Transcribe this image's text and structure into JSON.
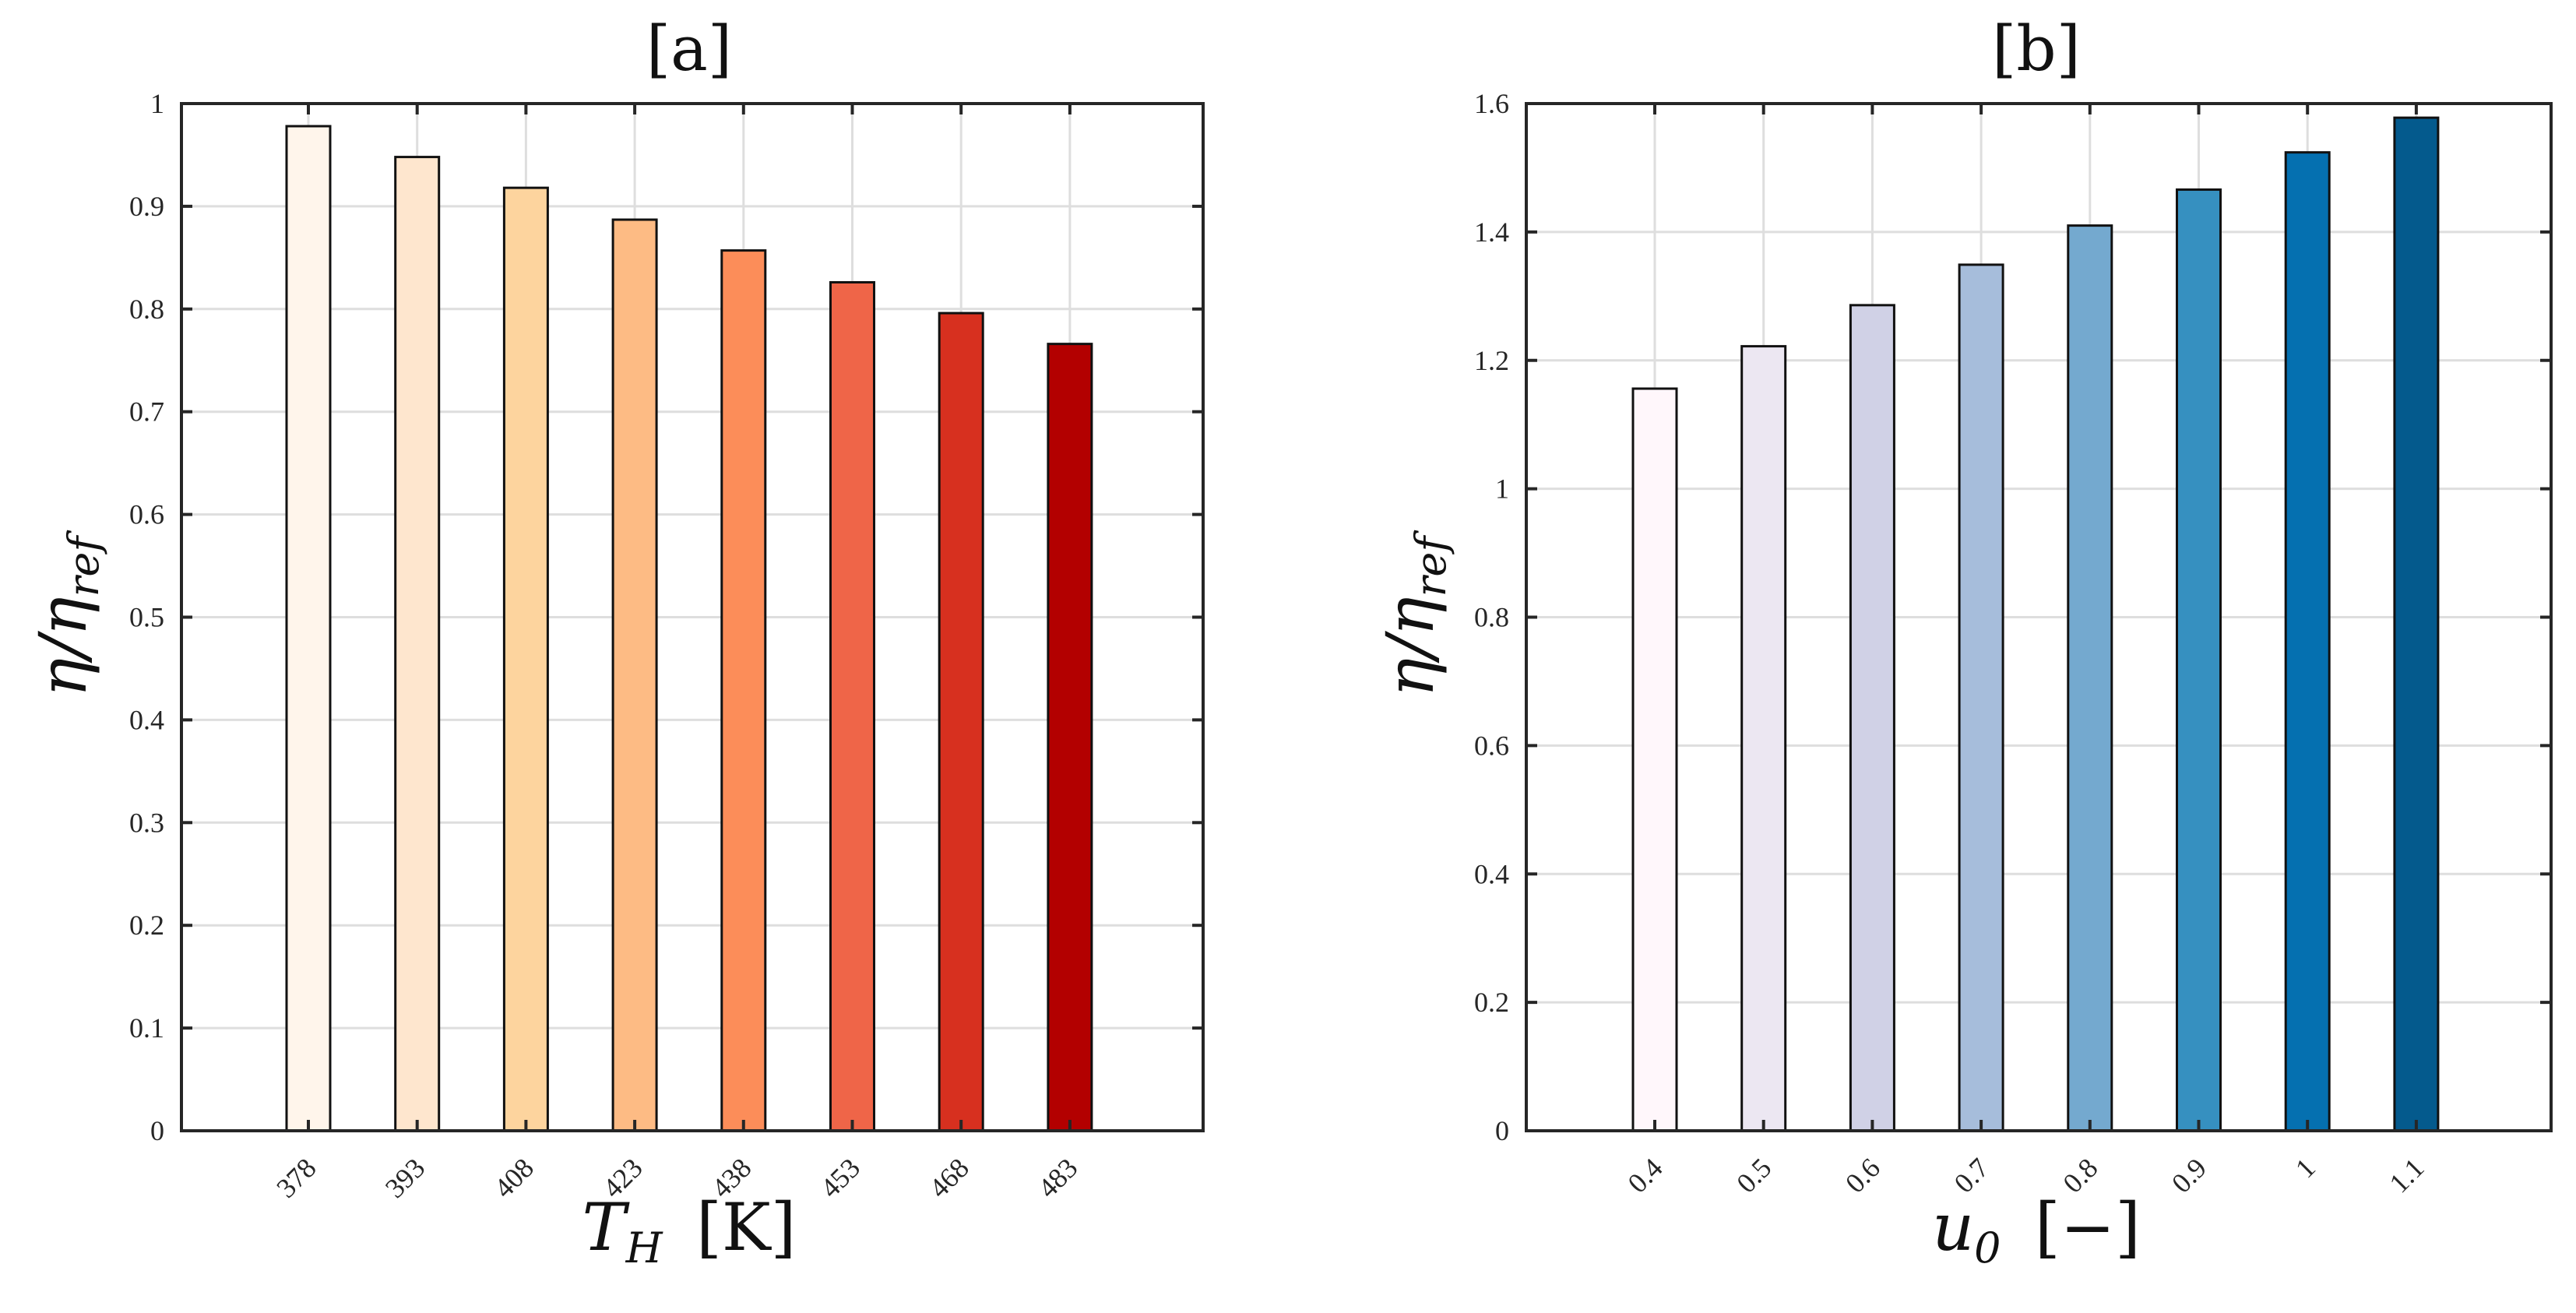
{
  "chart_data": [
    {
      "type": "bar",
      "title": "[a]",
      "xlabel": "T_H [K]",
      "ylabel": "η/η_ref",
      "categories": [
        "378",
        "393",
        "408",
        "423",
        "438",
        "453",
        "468",
        "483"
      ],
      "values": [
        0.978,
        0.948,
        0.918,
        0.887,
        0.857,
        0.826,
        0.796,
        0.766
      ],
      "ylim": [
        0,
        1
      ],
      "yticks": [
        "0",
        "0.1",
        "0.2",
        "0.3",
        "0.4",
        "0.5",
        "0.6",
        "0.7",
        "0.8",
        "0.9",
        "1"
      ],
      "ytick_values": [
        0,
        0.1,
        0.2,
        0.3,
        0.4,
        0.5,
        0.6,
        0.7,
        0.8,
        0.9,
        1
      ],
      "grid": true,
      "colors": [
        "#fff5eb",
        "#fee6ce",
        "#fdd49e",
        "#fdbb84",
        "#fc8d59",
        "#ef6548",
        "#d7301f",
        "#b30000"
      ]
    },
    {
      "type": "bar",
      "title": "[b]",
      "xlabel": "u_0 [−]",
      "ylabel": "η/η_ref",
      "categories": [
        "0.4",
        "0.5",
        "0.6",
        "0.7",
        "0.8",
        "0.9",
        "1",
        "1.1"
      ],
      "values": [
        1.156,
        1.222,
        1.286,
        1.349,
        1.41,
        1.466,
        1.524,
        1.578
      ],
      "ylim": [
        0,
        1.6
      ],
      "yticks": [
        "0",
        "0.2",
        "0.4",
        "0.6",
        "0.8",
        "1",
        "1.2",
        "1.4",
        "1.6"
      ],
      "ytick_values": [
        0,
        0.2,
        0.4,
        0.6,
        0.8,
        1,
        1.2,
        1.4,
        1.6
      ],
      "grid": true,
      "colors": [
        "#fff7fb",
        "#ece7f2",
        "#d0d1e6",
        "#a6bddb",
        "#74a9cf",
        "#3690c0",
        "#0570b0",
        "#045a8d"
      ]
    }
  ]
}
